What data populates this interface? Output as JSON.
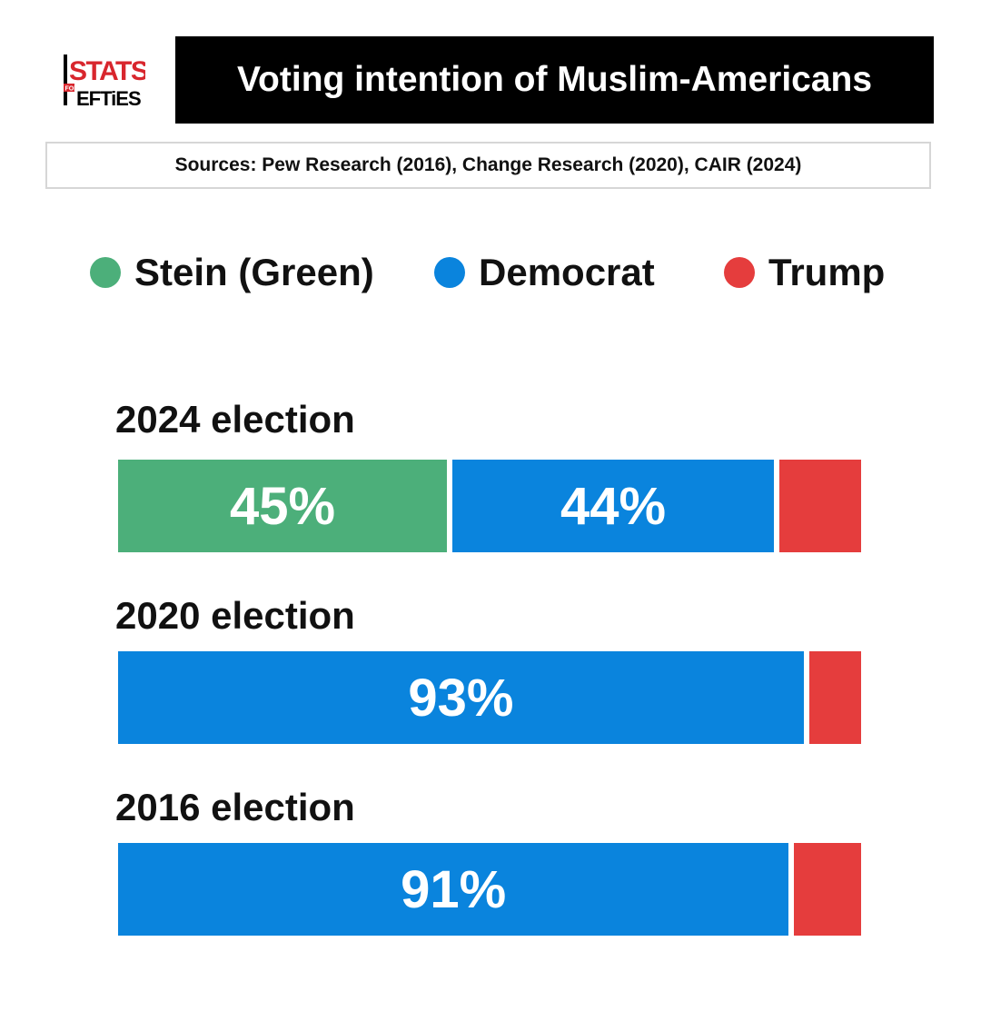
{
  "logo": {
    "text_top": "STATS",
    "text_mid": "FOR",
    "text_bottom": "LEFTiES"
  },
  "title": "Voting intention of Muslim-Americans",
  "sources": "Sources: Pew Research (2016), Change Research (2020), CAIR (2024)",
  "colors": {
    "stein": "#4caf7a",
    "democrat": "#0a84dd",
    "trump": "#e53d3d"
  },
  "legend": [
    {
      "label": "Stein (Green)",
      "color": "#4caf7a"
    },
    {
      "label": "Democrat",
      "color": "#0a84dd"
    },
    {
      "label": "Trump",
      "color": "#e53d3d"
    }
  ],
  "chart_data": {
    "type": "bar",
    "orientation": "horizontal-stacked",
    "categories": [
      "2024 election",
      "2020 election",
      "2016 election"
    ],
    "series": [
      {
        "name": "Stein (Green)",
        "values": [
          45,
          0,
          0
        ]
      },
      {
        "name": "Democrat",
        "values": [
          44,
          93,
          91
        ]
      },
      {
        "name": "Trump",
        "values": [
          11,
          7,
          9
        ]
      }
    ],
    "data_labels": [
      [
        "45%",
        "44%",
        ""
      ],
      [
        "",
        "93%",
        ""
      ],
      [
        "",
        "91%",
        ""
      ]
    ],
    "xlim": [
      0,
      100
    ],
    "legend_position": "top"
  }
}
